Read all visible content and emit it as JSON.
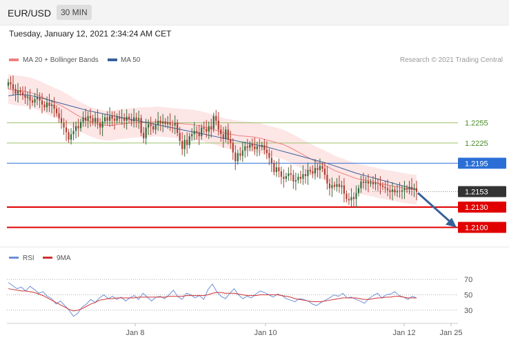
{
  "header": {
    "pair": "EUR/USD",
    "timeframe": "30 MIN"
  },
  "datetime": "Tuesday, January 12, 2021 2:34:24 AM CET",
  "legend": {
    "ma20": "MA 20 + Bollinger Bands",
    "ma50": "MA 50",
    "copyright": "Research © 2021 Trading Central"
  },
  "rsi_legend": {
    "rsi": "RSI",
    "ma9": "9MA"
  },
  "colors": {
    "ma20": "#f08080",
    "ma50": "#36609a",
    "band": "#fde3e3",
    "up": "#2f6b3a",
    "down": "#b03a2e",
    "support": "#e00000",
    "resistance": "#9cc06a",
    "pivot": "#2b6fd6",
    "current": "#333333",
    "arrow": "#36609a",
    "rsi": "#6a8fd8",
    "rsi_ma": "#d03030"
  },
  "chart_data": [
    {
      "type": "candlestick",
      "title": "EUR/USD 30 MIN",
      "x_ticks": [
        "Jan 8",
        "Jan 10",
        "Jan 12",
        "Jan 25"
      ],
      "y_range": [
        1.2075,
        1.2335
      ],
      "price_levels": [
        {
          "value": 1.2255,
          "label": "1.2255",
          "kind": "resistance"
        },
        {
          "value": 1.2225,
          "label": "1.2225",
          "kind": "resistance"
        },
        {
          "value": 1.2195,
          "label": "1.2195",
          "kind": "pivot"
        },
        {
          "value": 1.2153,
          "label": "1.2153",
          "kind": "current"
        },
        {
          "value": 1.213,
          "label": "1.2130",
          "kind": "support"
        },
        {
          "value": 1.21,
          "label": "1.2100",
          "kind": "support"
        }
      ],
      "close": [
        1.2315,
        1.2312,
        1.2305,
        1.2298,
        1.2303,
        1.23,
        1.2296,
        1.2292,
        1.2294,
        1.2288,
        1.2285,
        1.229,
        1.2293,
        1.2288,
        1.2282,
        1.2278,
        1.2285,
        1.228,
        1.2282,
        1.2276,
        1.2269,
        1.2262,
        1.2255,
        1.2248,
        1.2241,
        1.223,
        1.2238,
        1.2243,
        1.225,
        1.2247,
        1.2256,
        1.2263,
        1.2258,
        1.2265,
        1.2262,
        1.2256,
        1.2262,
        1.2255,
        1.2248,
        1.2257,
        1.2263,
        1.2258,
        1.2265,
        1.2261,
        1.2258,
        1.2264,
        1.2261,
        1.2262,
        1.2258,
        1.2264,
        1.226,
        1.2257,
        1.2263,
        1.2259,
        1.2262,
        1.224,
        1.2232,
        1.2248,
        1.2253,
        1.225,
        1.2245,
        1.2252,
        1.2258,
        1.2254,
        1.2257,
        1.2253,
        1.2256,
        1.2252,
        1.2251,
        1.2255,
        1.224,
        1.2228,
        1.2216,
        1.223,
        1.2222,
        1.2235,
        1.2238,
        1.2243,
        1.2241,
        1.2235,
        1.2248,
        1.2246,
        1.2242,
        1.225,
        1.2246,
        1.2265,
        1.2258,
        1.2245,
        1.2238,
        1.2231,
        1.2245,
        1.223,
        1.2225,
        1.2211,
        1.2198,
        1.221,
        1.2206,
        1.2214,
        1.222,
        1.2218,
        1.2223,
        1.222,
        1.2216,
        1.222,
        1.2219,
        1.2222,
        1.2215,
        1.221,
        1.2203,
        1.2195,
        1.2182,
        1.2189,
        1.2183,
        1.2175,
        1.2172,
        1.2176,
        1.218,
        1.2178,
        1.2168,
        1.217,
        1.2175,
        1.2172,
        1.2179,
        1.2176,
        1.2185,
        1.2183,
        1.218,
        1.2188,
        1.2185,
        1.2191,
        1.2187,
        1.2178,
        1.2165,
        1.2158,
        1.2163,
        1.216,
        1.2164,
        1.216,
        1.2162,
        1.215,
        1.2142,
        1.214,
        1.2145,
        1.2142,
        1.2151,
        1.2158,
        1.2168,
        1.2166,
        1.2168,
        1.2165,
        1.2167,
        1.2164,
        1.2166,
        1.2165,
        1.2162,
        1.216,
        1.2158,
        1.2155,
        1.2153,
        1.2156,
        1.2152,
        1.2154,
        1.2153,
        1.2155,
        1.2158,
        1.2156,
        1.216,
        1.2156,
        1.2158,
        1.2153
      ],
      "ma20": [
        1.2305,
        1.2303,
        1.2302,
        1.23,
        1.2296,
        1.2291,
        1.2286,
        1.2281,
        1.2275,
        1.2268,
        1.2262,
        1.2257,
        1.2253,
        1.2251,
        1.2251,
        1.2253,
        1.2254,
        1.2255,
        1.2256,
        1.2256,
        1.2257,
        1.2256,
        1.2255,
        1.2254,
        1.2253,
        1.2252,
        1.225,
        1.2247,
        1.2244,
        1.224,
        1.2238,
        1.2236,
        1.2235,
        1.2234,
        1.2232,
        1.2229,
        1.2226,
        1.2223,
        1.2218,
        1.2212,
        1.2206,
        1.22,
        1.2195,
        1.219,
        1.2184,
        1.218,
        1.2176,
        1.2172,
        1.217,
        1.2168,
        1.2165,
        1.2163,
        1.2161,
        1.2159,
        1.2157,
        1.2156
      ],
      "ma50": [
        1.2295,
        1.2297,
        1.2296,
        1.2293,
        1.2289,
        1.2285,
        1.2281,
        1.2277,
        1.2273,
        1.227,
        1.2267,
        1.2264,
        1.2261,
        1.2258,
        1.2255,
        1.2252,
        1.2249,
        1.2246,
        1.2243,
        1.224,
        1.2237,
        1.2234,
        1.2231,
        1.2228,
        1.2225,
        1.2222,
        1.2219,
        1.2215,
        1.2211,
        1.2207,
        1.2203,
        1.2199,
        1.2195,
        1.219,
        1.2185,
        1.218,
        1.2176,
        1.2172,
        1.2168,
        1.2164,
        1.216,
        1.2156
      ],
      "forecast_target": 1.21
    },
    {
      "type": "line",
      "title": "RSI",
      "y_ticks": [
        30,
        50,
        70
      ],
      "y_range": [
        20,
        80
      ],
      "rsi": [
        66,
        62,
        58,
        60,
        55,
        61,
        57,
        52,
        54,
        48,
        45,
        38,
        42,
        36,
        30,
        22,
        26,
        34,
        38,
        44,
        40,
        46,
        50,
        45,
        48,
        44,
        47,
        42,
        46,
        49,
        44,
        52,
        47,
        42,
        47,
        48,
        45,
        50,
        56,
        48,
        44,
        52,
        50,
        46,
        49,
        44,
        57,
        64,
        54,
        48,
        45,
        52,
        58,
        50,
        45,
        48,
        46,
        51,
        55,
        53,
        50,
        47,
        51,
        49,
        45,
        43,
        41,
        45,
        44,
        42,
        38,
        36,
        40,
        43,
        46,
        50,
        48,
        52,
        46,
        47,
        44,
        42,
        39,
        45,
        49,
        52,
        46,
        50,
        51,
        54,
        49,
        47,
        44,
        48,
        46
      ],
      "ma9": [
        58,
        57,
        56,
        55,
        55,
        54,
        53,
        51,
        49,
        46,
        43,
        40,
        37,
        34,
        31,
        29,
        30,
        32,
        35,
        38,
        40,
        43,
        44,
        45,
        45,
        46,
        46,
        46,
        46,
        46,
        47,
        47,
        47,
        47,
        47,
        47,
        47,
        48,
        48,
        48,
        48,
        49,
        49,
        49,
        49,
        49,
        50,
        52,
        53,
        53,
        52,
        52,
        52,
        51,
        50,
        49,
        49,
        49,
        50,
        50,
        50,
        50,
        50,
        49,
        48,
        47,
        45,
        44,
        43,
        42,
        41,
        41,
        41,
        42,
        43,
        44,
        45,
        46,
        46,
        46,
        46,
        45,
        44,
        44,
        45,
        46,
        46,
        47,
        47,
        48,
        48,
        47,
        46,
        46,
        46
      ]
    }
  ]
}
